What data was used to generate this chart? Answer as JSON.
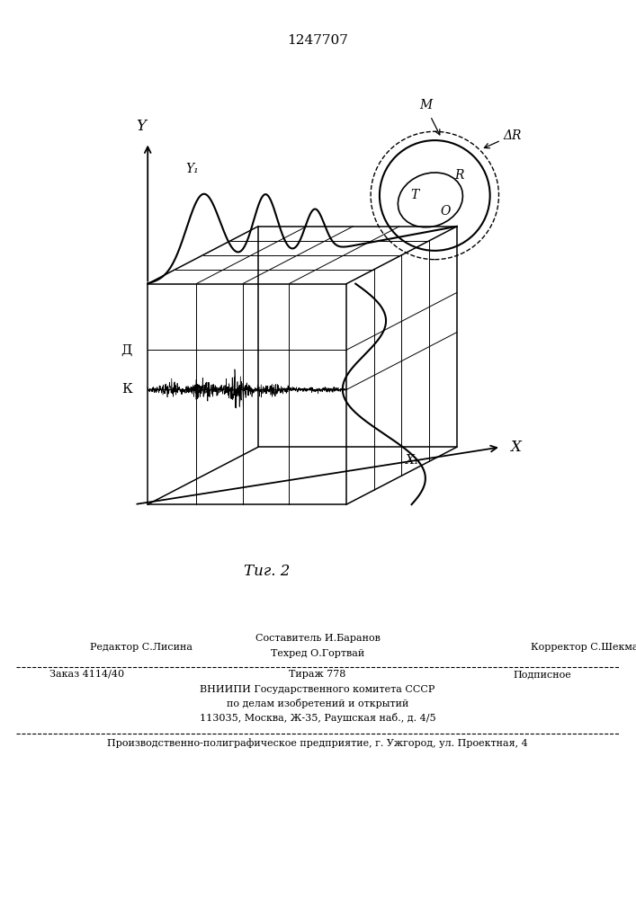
{
  "title": "1247707",
  "fig_caption": "Τиг. 2",
  "bg_color": "#ffffff",
  "line_color": "#000000",
  "axes": {
    "Y_label": "Y",
    "X_label": "X",
    "Y1_label": "Y₁",
    "X1_label": "X₁",
    "D_label": "Д",
    "K_label": "К"
  },
  "circle_labels": {
    "M": "M",
    "R": "R",
    "T": "T",
    "O": "O",
    "dR": "ΔR"
  },
  "footer": {
    "editor": "Редактор С.Лисина",
    "composer_label": "Составитель И.Баранов",
    "techred_label": "Техред О.Гортвай",
    "corrector_label": "Корректор С.Шекмар",
    "order": "Заказ 4114/40",
    "tirazh": "Тираж 778",
    "podpisnoe": "Подписное",
    "vniiipi": "ВНИИПИ Государственного комитета СССР",
    "po_delam": "по делам изобретений и открытий",
    "address": "113035, Москва, Ж-35, Раушская наб., д. 4/5",
    "production": "Производственно-полиграфическое предприятие, г. Ужгород, ул. Проектная, 4"
  }
}
